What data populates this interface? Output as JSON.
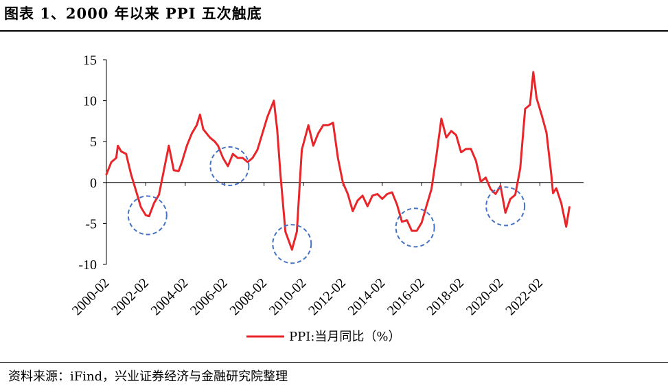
{
  "header": {
    "title": "图表 1、2000 年以来 PPI 五次触底"
  },
  "footer": {
    "source": "资料来源：iFind，兴业证券经济与金融研究院整理"
  },
  "chart_data": {
    "type": "line",
    "title": "图表 1、2000 年以来 PPI 五次触底",
    "ylim": [
      -10,
      15
    ],
    "yticks": [
      -10,
      -5,
      0,
      5,
      10,
      15
    ],
    "xticks": [
      "2000-02",
      "2002-02",
      "2004-02",
      "2006-02",
      "2008-02",
      "2010-02",
      "2012-02",
      "2014-02",
      "2016-02",
      "2018-02",
      "2020-02",
      "2022-02"
    ],
    "grid": false,
    "legend": "bottom-center",
    "colors": {
      "series": "#e8262a",
      "annotation": "#4472c4"
    },
    "series": [
      {
        "name": "PPI:当月同比（%）",
        "points": [
          [
            "2000-02",
            1.0
          ],
          [
            "2000-05",
            2.5
          ],
          [
            "2000-08",
            3.0
          ],
          [
            "2000-09",
            4.5
          ],
          [
            "2000-11",
            3.8
          ],
          [
            "2001-02",
            3.5
          ],
          [
            "2001-05",
            1.0
          ],
          [
            "2001-08",
            -1.0
          ],
          [
            "2001-11",
            -3.0
          ],
          [
            "2002-02",
            -4.0
          ],
          [
            "2002-04",
            -4.1
          ],
          [
            "2002-07",
            -2.5
          ],
          [
            "2002-10",
            -1.5
          ],
          [
            "2003-02",
            2.5
          ],
          [
            "2003-04",
            4.5
          ],
          [
            "2003-07",
            1.5
          ],
          [
            "2003-10",
            1.4
          ],
          [
            "2003-12",
            2.5
          ],
          [
            "2004-03",
            4.5
          ],
          [
            "2004-06",
            6.0
          ],
          [
            "2004-09",
            7.0
          ],
          [
            "2004-11",
            8.3
          ],
          [
            "2005-01",
            6.5
          ],
          [
            "2005-05",
            5.5
          ],
          [
            "2005-08",
            5.0
          ],
          [
            "2005-10",
            4.5
          ],
          [
            "2006-01",
            3.0
          ],
          [
            "2006-04",
            2.0
          ],
          [
            "2006-07",
            3.5
          ],
          [
            "2006-10",
            3.0
          ],
          [
            "2007-01",
            3.0
          ],
          [
            "2007-04",
            2.5
          ],
          [
            "2007-07",
            3.0
          ],
          [
            "2007-10",
            4.0
          ],
          [
            "2008-01",
            6.0
          ],
          [
            "2008-04",
            8.0
          ],
          [
            "2008-08",
            10.0
          ],
          [
            "2008-10",
            6.5
          ],
          [
            "2008-12",
            1.0
          ],
          [
            "2009-03",
            -6.0
          ],
          [
            "2009-07",
            -8.2
          ],
          [
            "2009-10",
            -6.0
          ],
          [
            "2010-01",
            4.0
          ],
          [
            "2010-05",
            7.0
          ],
          [
            "2010-08",
            4.5
          ],
          [
            "2010-11",
            6.0
          ],
          [
            "2011-02",
            7.0
          ],
          [
            "2011-05",
            7.0
          ],
          [
            "2011-08",
            7.3
          ],
          [
            "2011-11",
            3.0
          ],
          [
            "2012-02",
            0.0
          ],
          [
            "2012-05",
            -1.4
          ],
          [
            "2012-08",
            -3.5
          ],
          [
            "2012-11",
            -2.2
          ],
          [
            "2013-02",
            -1.6
          ],
          [
            "2013-05",
            -2.9
          ],
          [
            "2013-08",
            -1.6
          ],
          [
            "2013-11",
            -1.4
          ],
          [
            "2014-02",
            -2.0
          ],
          [
            "2014-05",
            -1.4
          ],
          [
            "2014-08",
            -1.2
          ],
          [
            "2014-11",
            -2.7
          ],
          [
            "2015-02",
            -4.8
          ],
          [
            "2015-05",
            -4.6
          ],
          [
            "2015-08",
            -5.9
          ],
          [
            "2015-11",
            -5.9
          ],
          [
            "2016-02",
            -4.9
          ],
          [
            "2016-05",
            -2.8
          ],
          [
            "2016-08",
            -0.8
          ],
          [
            "2016-11",
            3.3
          ],
          [
            "2017-02",
            7.8
          ],
          [
            "2017-05",
            5.5
          ],
          [
            "2017-08",
            6.3
          ],
          [
            "2017-11",
            5.8
          ],
          [
            "2018-02",
            3.7
          ],
          [
            "2018-05",
            4.1
          ],
          [
            "2018-08",
            4.1
          ],
          [
            "2018-11",
            2.7
          ],
          [
            "2019-02",
            0.1
          ],
          [
            "2019-05",
            0.6
          ],
          [
            "2019-08",
            -0.8
          ],
          [
            "2019-11",
            -1.4
          ],
          [
            "2020-02",
            -0.4
          ],
          [
            "2020-05",
            -3.7
          ],
          [
            "2020-08",
            -2.0
          ],
          [
            "2020-11",
            -1.5
          ],
          [
            "2021-02",
            1.7
          ],
          [
            "2021-05",
            9.0
          ],
          [
            "2021-08",
            9.5
          ],
          [
            "2021-10",
            13.5
          ],
          [
            "2021-12",
            10.3
          ],
          [
            "2022-03",
            8.3
          ],
          [
            "2022-06",
            6.1
          ],
          [
            "2022-09",
            0.9
          ],
          [
            "2022-10",
            -1.3
          ],
          [
            "2022-12",
            -0.7
          ],
          [
            "2023-03",
            -2.5
          ],
          [
            "2023-06",
            -5.4
          ],
          [
            "2023-08",
            -3.0
          ]
        ]
      }
    ],
    "annotations": [
      {
        "type": "circle",
        "at": [
          "2002-03",
          -4.0
        ]
      },
      {
        "type": "circle",
        "at": [
          "2006-05",
          2.0
        ]
      },
      {
        "type": "circle",
        "at": [
          "2009-07",
          -7.5
        ]
      },
      {
        "type": "circle",
        "at": [
          "2015-10",
          -5.5
        ]
      },
      {
        "type": "circle",
        "at": [
          "2020-05",
          -2.9
        ]
      }
    ]
  }
}
